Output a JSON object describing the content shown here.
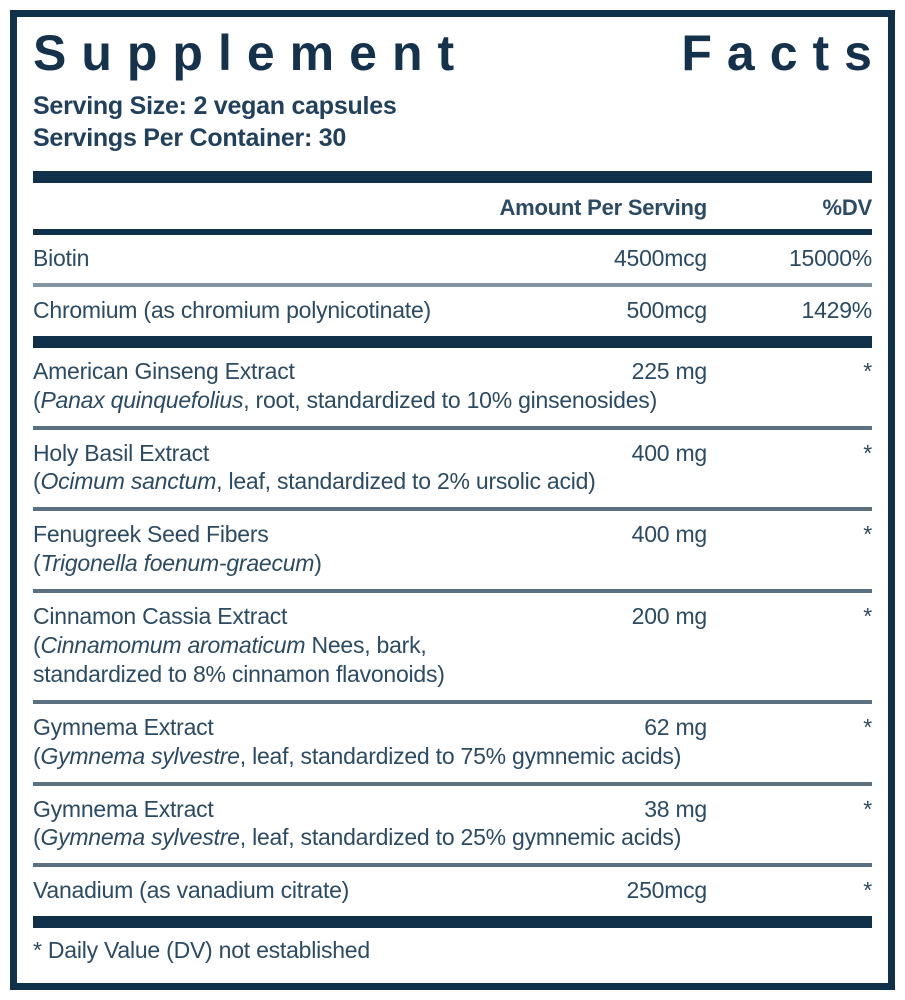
{
  "colors": {
    "navy": "#11304a",
    "text": "#2b4a63",
    "divider_thin": "#8495a2",
    "divider_medium": "#5a7080",
    "background": "#ffffff"
  },
  "label": {
    "title": "Supplement Facts",
    "title_words": [
      "Supplement",
      "Facts"
    ],
    "serving_size": "Serving Size: 2 vegan capsules",
    "servings_per_container": "Servings Per Container: 30",
    "footnote": "* Daily Value (DV) not established"
  },
  "table": {
    "columns": {
      "amount": "Amount Per Serving",
      "dv": "%DV"
    },
    "rows": [
      {
        "name": "Biotin",
        "amount": "4500mcg",
        "dv": "15000%",
        "details": [],
        "divider_after": "thin"
      },
      {
        "name": "Chromium (as chromium polynicotinate)",
        "amount": "500mcg",
        "dv": "1429%",
        "details": [],
        "divider_after": "bar"
      },
      {
        "name": "American Ginseng Extract",
        "amount": "225 mg",
        "dv": "*",
        "details": [
          [
            {
              "t": "(",
              "i": false
            },
            {
              "t": "Panax quinquefolius",
              "i": true
            },
            {
              "t": ", root, standardized to 10% ginsenosides)",
              "i": false
            }
          ]
        ],
        "divider_after": "med"
      },
      {
        "name": "Holy Basil Extract",
        "amount": "400 mg",
        "dv": "*",
        "details": [
          [
            {
              "t": "(",
              "i": false
            },
            {
              "t": "Ocimum sanctum",
              "i": true
            },
            {
              "t": ", leaf, standardized to 2% ursolic acid)",
              "i": false
            }
          ]
        ],
        "divider_after": "med"
      },
      {
        "name": "Fenugreek Seed Fibers",
        "amount": "400 mg",
        "dv": "*",
        "details": [
          [
            {
              "t": "(",
              "i": false
            },
            {
              "t": "Trigonella foenum-graecum",
              "i": true
            },
            {
              "t": ")",
              "i": false
            }
          ]
        ],
        "divider_after": "med"
      },
      {
        "name": "Cinnamon Cassia Extract",
        "amount": "200 mg",
        "dv": "*",
        "details": [
          [
            {
              "t": "(",
              "i": false
            },
            {
              "t": "Cinnamomum aromaticum",
              "i": true
            },
            {
              "t": " Nees, bark,",
              "i": false
            }
          ],
          [
            {
              "t": "standardized to 8% cinnamon flavonoids)",
              "i": false
            }
          ]
        ],
        "divider_after": "med"
      },
      {
        "name": "Gymnema Extract",
        "amount": "62 mg",
        "dv": "*",
        "details": [
          [
            {
              "t": "(",
              "i": false
            },
            {
              "t": "Gymnema sylvestre",
              "i": true
            },
            {
              "t": ", leaf, standardized to 75% gymnemic acids)",
              "i": false
            }
          ]
        ],
        "divider_after": "med"
      },
      {
        "name": "Gymnema Extract",
        "amount": "38 mg",
        "dv": "*",
        "details": [
          [
            {
              "t": "(",
              "i": false
            },
            {
              "t": "Gymnema sylvestre",
              "i": true
            },
            {
              "t": ", leaf, standardized to 25% gymnemic acids)",
              "i": false
            }
          ]
        ],
        "divider_after": "med"
      },
      {
        "name": "Vanadium (as vanadium citrate)",
        "amount": "250mcg",
        "dv": "*",
        "details": [],
        "divider_after": "bar"
      }
    ]
  }
}
